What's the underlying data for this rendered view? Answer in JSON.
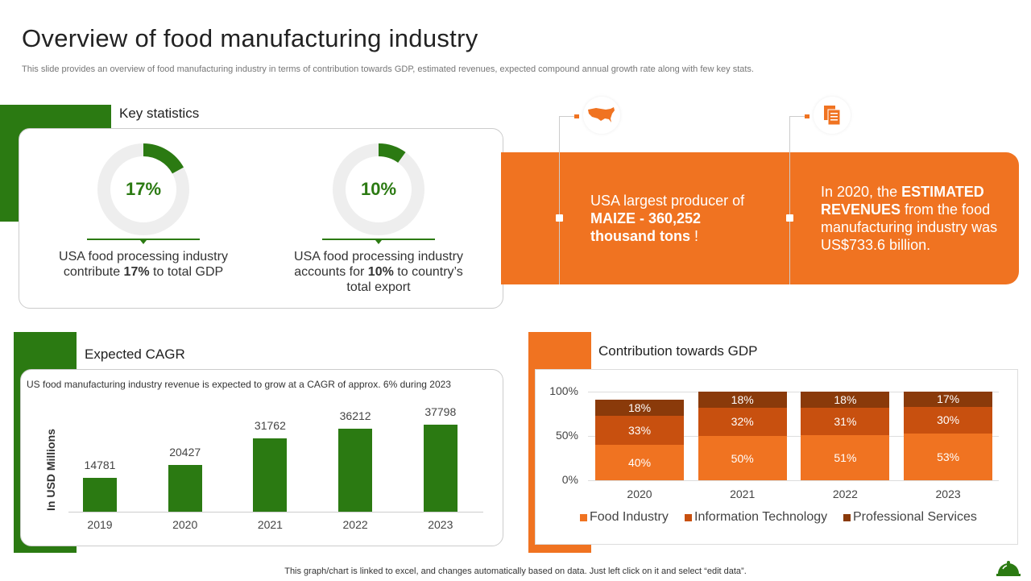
{
  "title": "Overview of food manufacturing industry",
  "subtitle": "This slide provides an overview of food manufacturing industry in terms of contribution towards GDP, estimated revenues, expected compound annual growth rate along with few key stats.",
  "key_statistics": {
    "label": "Key statistics",
    "stats": [
      {
        "value": "17%",
        "fraction": 0.17,
        "text_pre": "USA food processing industry contribute ",
        "text_bold": "17%",
        "text_post": " to total GDP"
      },
      {
        "value": "10%",
        "fraction": 0.1,
        "text_pre": "USA food processing industry accounts for ",
        "text_bold": "10%",
        "text_post": " to country’s total export"
      }
    ]
  },
  "highlights": [
    {
      "icon": "usa-map-icon",
      "pre": "USA largest producer of ",
      "bold": "MAIZE - 360,252 thousand tons",
      "post": " !"
    },
    {
      "icon": "document-icon",
      "pre": "In 2020, the ",
      "bold": "ESTIMATED REVENUES",
      "post": " from the food manufacturing industry was US$733.6 billion."
    }
  ],
  "colors": {
    "green": "#2b7a12",
    "orange": "#f07321",
    "it": "#c8500f",
    "professional": "#8a3a0a"
  },
  "chart_data": [
    {
      "type": "bar",
      "title": "Expected CAGR",
      "subtitle": "US food manufacturing  industry revenue  is expected to grow  at a CAGR of approx. 6% during 2023",
      "ylabel": "In USD Millions",
      "categories": [
        "2019",
        "2020",
        "2021",
        "2022",
        "2023"
      ],
      "values": [
        14781,
        20427,
        31762,
        36212,
        37798
      ]
    },
    {
      "type": "bar",
      "stacked": true,
      "title": "Contribution towards GDP",
      "categories": [
        "2020",
        "2021",
        "2022",
        "2023"
      ],
      "yticks": [
        "0%",
        "50%",
        "100%"
      ],
      "ylim": [
        0,
        100
      ],
      "grid": true,
      "legend": "bottom",
      "series": [
        {
          "name": "Food Industry",
          "values": [
            40,
            50,
            51,
            53
          ]
        },
        {
          "name": "Information Technology",
          "values": [
            33,
            32,
            31,
            30
          ]
        },
        {
          "name": "Professional Services",
          "values": [
            18,
            18,
            18,
            17
          ]
        }
      ]
    }
  ],
  "footer": "This graph/chart is linked to excel,  and changes automatically based on data. Just left click on it and select “edit data”."
}
